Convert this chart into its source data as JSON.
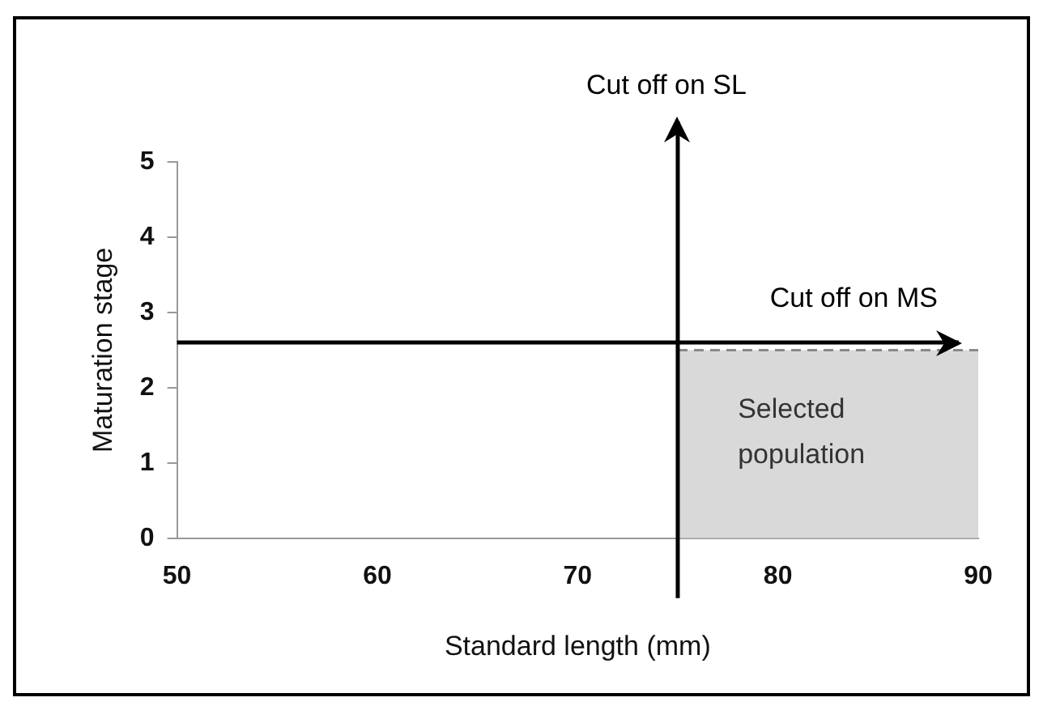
{
  "chart_data": {
    "type": "area",
    "xlabel": "Standard length (mm)",
    "ylabel": "Maturation stage",
    "xlim": [
      50,
      90
    ],
    "xticks": [
      50,
      60,
      70,
      80,
      90
    ],
    "ylim": [
      0,
      5
    ],
    "yticks": [
      0,
      1,
      2,
      3,
      4,
      5
    ],
    "grid": false,
    "legend": false,
    "line_style": "dashed",
    "series": [
      {
        "x": [
          75,
          90
        ],
        "values": [
          2.5,
          2.5
        ],
        "color": "#d9d9d9"
      }
    ],
    "ref_lines": [
      {
        "axis": "x",
        "value": 75,
        "label": "Cut off on SL"
      },
      {
        "axis": "y",
        "value": 2.6,
        "label": "Cut off on MS"
      }
    ],
    "annotations": [
      "Selected population"
    ]
  }
}
